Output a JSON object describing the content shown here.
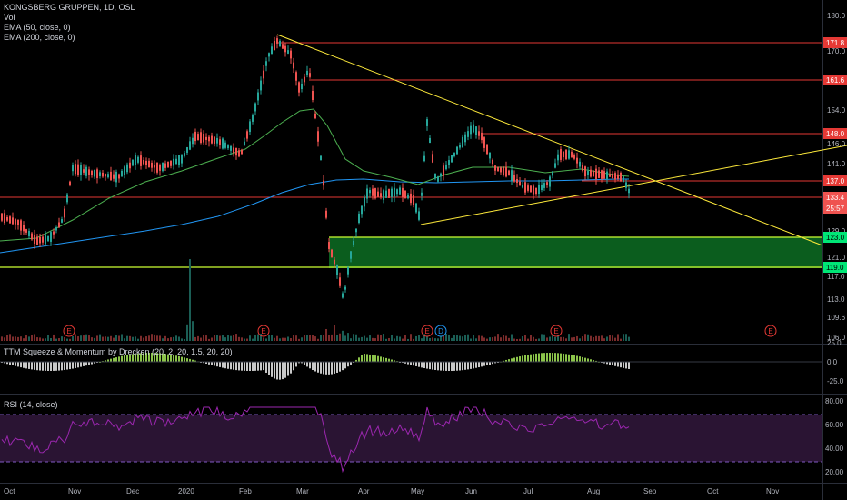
{
  "legend": {
    "main_title": "KONGSBERG GRUPPEN, 1D, OSL",
    "vol": "Vol",
    "ema50": "EMA (50, close, 0)",
    "ema200": "EMA (200, close, 0)",
    "ttm": "TTM Squeeze & Momentum by Drecken (20, 2, 20, 1.5, 20, 20)",
    "rsi": "RSI (14, close)"
  },
  "price_axis": [
    "180.0",
    "171.8",
    "170.0",
    "161.6",
    "154.0",
    "148.0",
    "146.0",
    "141.0",
    "137.0",
    "133.4",
    "25:57",
    "129.0",
    "123.0",
    "121.0",
    "119.0",
    "117.0",
    "113.0",
    "109.6",
    "106.0"
  ],
  "price_tags": [
    {
      "label": "171.8",
      "color": "#e53935"
    },
    {
      "label": "161.6",
      "color": "#e53935"
    },
    {
      "label": "148.0",
      "color": "#e53935"
    },
    {
      "label": "137.0",
      "color": "#e53935"
    },
    {
      "label": "133.4",
      "color": "#ef5350"
    },
    {
      "label": "25:57",
      "color": "#ef5350"
    },
    {
      "label": "123.0",
      "color": "#00e676"
    },
    {
      "label": "119.0",
      "color": "#00e676"
    }
  ],
  "momentum_axis": [
    "25.0",
    "0.0",
    "-25.0"
  ],
  "rsi_axis": [
    "80.00",
    "60.00",
    "40.00",
    "20.00"
  ],
  "time_axis": [
    "Oct",
    "Nov",
    "Dec",
    "2020",
    "Feb",
    "Mar",
    "Apr",
    "May",
    "Jun",
    "Jul",
    "Aug",
    "Sep",
    "Oct",
    "Nov"
  ],
  "event_markers": [
    "E",
    "E",
    "E",
    "D",
    "E",
    "E"
  ],
  "colors": {
    "up": "#26a69a",
    "down": "#ef5350",
    "ema50": "#4caf50",
    "ema200": "#2196f3",
    "trend": "#ffeb3b",
    "level": "#e53935",
    "zone": "#00e676",
    "rsi": "#9c27b0"
  }
}
